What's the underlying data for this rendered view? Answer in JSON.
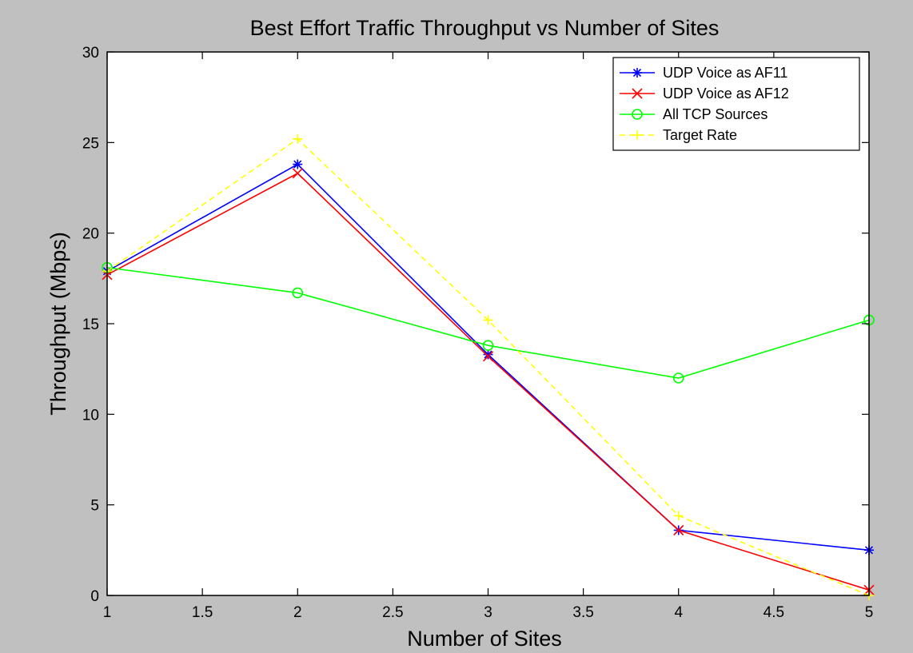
{
  "chart_data": {
    "type": "line",
    "title": "Best Effort Traffic Throughput vs Number of Sites",
    "xlabel": "Number of Sites",
    "ylabel": "Throughput (Mbps)",
    "xlim": [
      1,
      5
    ],
    "ylim": [
      0,
      30
    ],
    "xticks": [
      1,
      1.5,
      2,
      2.5,
      3,
      3.5,
      4,
      4.5,
      5
    ],
    "xtick_labels": [
      "1",
      "1.5",
      "2",
      "2.5",
      "3",
      "3.5",
      "4",
      "4.5",
      "5"
    ],
    "yticks": [
      0,
      5,
      10,
      15,
      20,
      25,
      30
    ],
    "ytick_labels": [
      "0",
      "5",
      "10",
      "15",
      "20",
      "25",
      "30"
    ],
    "grid": false,
    "legend_position": "top-right",
    "x": [
      1,
      2,
      3,
      4,
      5
    ],
    "series": [
      {
        "name": "UDP Voice as AF11",
        "values": [
          17.9,
          23.8,
          13.3,
          3.6,
          2.5
        ],
        "color": "#0000ff",
        "marker": "star",
        "line_style": "solid"
      },
      {
        "name": "UDP Voice as AF12",
        "values": [
          17.7,
          23.3,
          13.2,
          3.6,
          0.3
        ],
        "color": "#ff0000",
        "marker": "x",
        "line_style": "solid"
      },
      {
        "name": "All TCP Sources",
        "values": [
          18.1,
          16.7,
          13.8,
          12.0,
          15.2
        ],
        "color": "#00ff00",
        "marker": "circle",
        "line_style": "solid"
      },
      {
        "name": "Target Rate",
        "values": [
          17.9,
          25.2,
          15.2,
          4.4,
          0.0
        ],
        "color": "#ffff00",
        "marker": "plus",
        "line_style": "dashed"
      }
    ]
  }
}
